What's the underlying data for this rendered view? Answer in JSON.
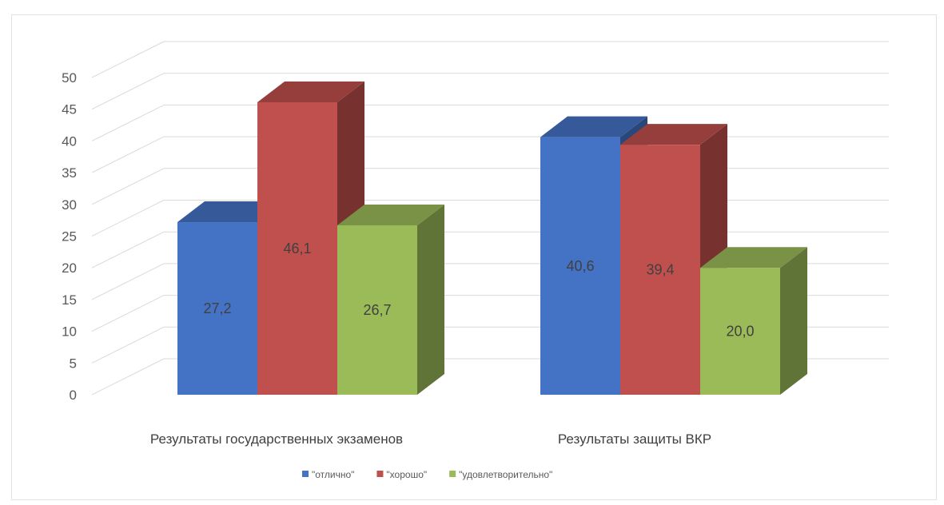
{
  "chart_data": {
    "type": "bar",
    "categories": [
      "Результаты государственных экзаменов",
      "Результаты защиты ВКР"
    ],
    "series": [
      {
        "name": "\"отлично\"",
        "values": [
          27.2,
          40.6
        ],
        "labels": [
          "27,2",
          "40,6"
        ],
        "color": "#4472c4"
      },
      {
        "name": "\"хорошо\"",
        "values": [
          46.1,
          39.4
        ],
        "labels": [
          "46,1",
          "39,4"
        ],
        "color": "#c0504d"
      },
      {
        "name": "\"удовлетворительно\"",
        "values": [
          26.7,
          20.0
        ],
        "labels": [
          "26,7",
          "20,0"
        ],
        "color": "#9bbb59"
      }
    ],
    "y_ticks": [
      "0",
      "5",
      "10",
      "15",
      "20",
      "25",
      "30",
      "35",
      "40",
      "45",
      "50"
    ],
    "ylim": [
      0,
      50
    ],
    "grid": true,
    "legend_position": "bottom",
    "three_d": true
  }
}
